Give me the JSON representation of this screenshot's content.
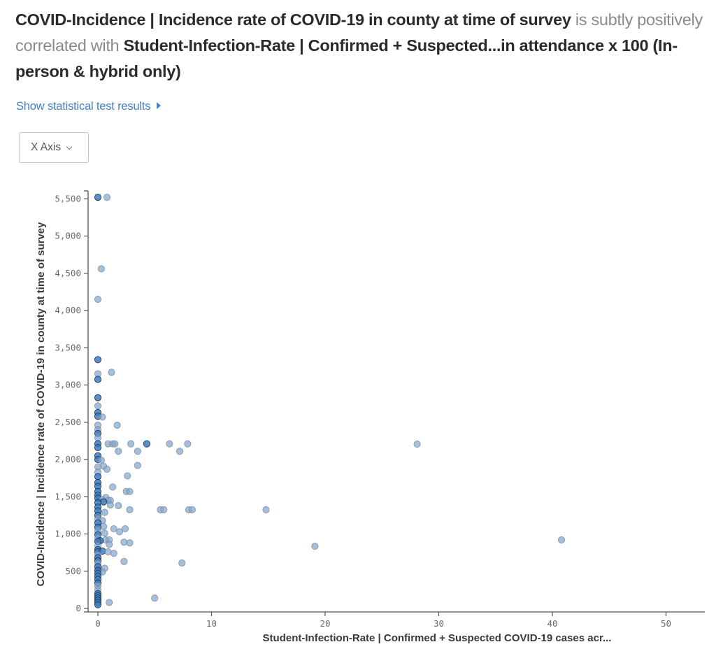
{
  "headline": {
    "var_y": "COVID-Incidence | Incidence rate of COVID-19 in county at time of survey",
    "relation": " is subtly positively correlated with ",
    "var_x": "Student-Infection-Rate | Confirmed + Suspected...in attendance x 100 (In-person & hybrid only)"
  },
  "stat_link": {
    "label": "Show statistical test results",
    "icon": "caret-right-icon"
  },
  "axis_dropdown": {
    "label": "X Axis",
    "icon": "chevron-down-icon"
  },
  "colors": {
    "accent": "#3f82c8",
    "point": "#7aa6d6",
    "point_dark": "#3d7cc2"
  },
  "chart_data": {
    "type": "scatter",
    "title": "",
    "xlabel": "Student-Infection-Rate | Confirmed + Suspected COVID-19 cases acr...",
    "ylabel": "COVID-Incidence | Incidence rate of COVID-19 in county at time of survey",
    "xlim": [
      -0.8,
      53.8
    ],
    "ylim": [
      0,
      5600
    ],
    "x_ticks": [
      0,
      10,
      20,
      30,
      40,
      50
    ],
    "x_tick_labels": [
      "0",
      "10",
      "20",
      "30",
      "40",
      "50"
    ],
    "y_ticks": [
      0,
      500,
      1000,
      1500,
      2000,
      2500,
      3000,
      3500,
      4000,
      4500,
      5000,
      5500
    ],
    "y_tick_labels": [
      "0",
      "500",
      "1,000",
      "1,500",
      "2,000",
      "2,500",
      "3,000",
      "3,500",
      "4,000",
      "4,500",
      "5,000",
      "5,500"
    ],
    "grid": false,
    "points": [
      {
        "x": 0,
        "y": 5520,
        "dense": true
      },
      {
        "x": 0.8,
        "y": 5520
      },
      {
        "x": 0.3,
        "y": 4560
      },
      {
        "x": 0,
        "y": 4150
      },
      {
        "x": 0,
        "y": 3340,
        "dense": true
      },
      {
        "x": 0,
        "y": 3150
      },
      {
        "x": 0,
        "y": 3075,
        "dense": true
      },
      {
        "x": 1.2,
        "y": 3170
      },
      {
        "x": 0,
        "y": 2830,
        "dense": true
      },
      {
        "x": 0,
        "y": 2720
      },
      {
        "x": 0,
        "y": 2630,
        "dense": true
      },
      {
        "x": 0,
        "y": 2580,
        "dense": true
      },
      {
        "x": 0.4,
        "y": 2570
      },
      {
        "x": 1.7,
        "y": 2460
      },
      {
        "x": 0,
        "y": 2460
      },
      {
        "x": 0,
        "y": 2400
      },
      {
        "x": 0,
        "y": 2350,
        "dense": true
      },
      {
        "x": 0,
        "y": 2290
      },
      {
        "x": 0,
        "y": 2210,
        "dense": true
      },
      {
        "x": 0,
        "y": 2160,
        "dense": true
      },
      {
        "x": 0.9,
        "y": 2210
      },
      {
        "x": 1.3,
        "y": 2210
      },
      {
        "x": 1.5,
        "y": 2210
      },
      {
        "x": 2.9,
        "y": 2210
      },
      {
        "x": 4.3,
        "y": 2210,
        "dense": true
      },
      {
        "x": 6.3,
        "y": 2210
      },
      {
        "x": 7.9,
        "y": 2210
      },
      {
        "x": 1.8,
        "y": 2110
      },
      {
        "x": 3.5,
        "y": 2110
      },
      {
        "x": 7.2,
        "y": 2110
      },
      {
        "x": 28.1,
        "y": 2206
      },
      {
        "x": 0,
        "y": 2050,
        "dense": true
      },
      {
        "x": 0,
        "y": 2000,
        "dense": true
      },
      {
        "x": 0.3,
        "y": 1990
      },
      {
        "x": 0.5,
        "y": 1910
      },
      {
        "x": 3.5,
        "y": 1920
      },
      {
        "x": 0,
        "y": 1900
      },
      {
        "x": 0.8,
        "y": 1870
      },
      {
        "x": 0,
        "y": 1830
      },
      {
        "x": 0,
        "y": 1770,
        "dense": true
      },
      {
        "x": 2.6,
        "y": 1780
      },
      {
        "x": 0,
        "y": 1690,
        "dense": true
      },
      {
        "x": 0,
        "y": 1640,
        "dense": true
      },
      {
        "x": 1.3,
        "y": 1630
      },
      {
        "x": 0,
        "y": 1570,
        "dense": true
      },
      {
        "x": 2.5,
        "y": 1570
      },
      {
        "x": 2.8,
        "y": 1570
      },
      {
        "x": 0,
        "y": 1520,
        "dense": true
      },
      {
        "x": 0,
        "y": 1480,
        "dense": true
      },
      {
        "x": 0.7,
        "y": 1490
      },
      {
        "x": 0.4,
        "y": 1460
      },
      {
        "x": 0.9,
        "y": 1450
      },
      {
        "x": 1.1,
        "y": 1450
      },
      {
        "x": 0.5,
        "y": 1430,
        "dense": true
      },
      {
        "x": 0,
        "y": 1420,
        "dense": true
      },
      {
        "x": 1.1,
        "y": 1390
      },
      {
        "x": 1.8,
        "y": 1380
      },
      {
        "x": 0,
        "y": 1360,
        "dense": true
      },
      {
        "x": 0,
        "y": 1310,
        "dense": true
      },
      {
        "x": 0.6,
        "y": 1290
      },
      {
        "x": 2.8,
        "y": 1325
      },
      {
        "x": 5.5,
        "y": 1325
      },
      {
        "x": 5.8,
        "y": 1325
      },
      {
        "x": 8.0,
        "y": 1325
      },
      {
        "x": 8.3,
        "y": 1325
      },
      {
        "x": 14.8,
        "y": 1325
      },
      {
        "x": 0,
        "y": 1250,
        "dense": true
      },
      {
        "x": 0,
        "y": 1200
      },
      {
        "x": 0.4,
        "y": 1180
      },
      {
        "x": 0,
        "y": 1150,
        "dense": true
      },
      {
        "x": 0.5,
        "y": 1100
      },
      {
        "x": 1.4,
        "y": 1070
      },
      {
        "x": 2.4,
        "y": 1070
      },
      {
        "x": 0,
        "y": 1090,
        "dense": true
      },
      {
        "x": 0,
        "y": 1040
      },
      {
        "x": 0.6,
        "y": 1010
      },
      {
        "x": 1.9,
        "y": 1030
      },
      {
        "x": 0,
        "y": 990,
        "dense": true
      },
      {
        "x": 0,
        "y": 940
      },
      {
        "x": 0.7,
        "y": 920
      },
      {
        "x": 1.0,
        "y": 920
      },
      {
        "x": 2.3,
        "y": 890
      },
      {
        "x": 2.8,
        "y": 880
      },
      {
        "x": 0.2,
        "y": 910,
        "dense": true
      },
      {
        "x": 0,
        "y": 900,
        "dense": true
      },
      {
        "x": 1.0,
        "y": 860
      },
      {
        "x": 0,
        "y": 840
      },
      {
        "x": 19.1,
        "y": 835
      },
      {
        "x": 40.8,
        "y": 920
      },
      {
        "x": 0,
        "y": 790,
        "dense": true
      },
      {
        "x": 0,
        "y": 760,
        "dense": true
      },
      {
        "x": 0.4,
        "y": 770,
        "dense": true
      },
      {
        "x": 0.9,
        "y": 760
      },
      {
        "x": 1.4,
        "y": 740
      },
      {
        "x": 0,
        "y": 720
      },
      {
        "x": 0,
        "y": 680,
        "dense": true
      },
      {
        "x": 0,
        "y": 640,
        "dense": true
      },
      {
        "x": 2.3,
        "y": 630
      },
      {
        "x": 7.4,
        "y": 610
      },
      {
        "x": 0,
        "y": 600
      },
      {
        "x": 0,
        "y": 560,
        "dense": true
      },
      {
        "x": 0.6,
        "y": 540
      },
      {
        "x": 0.4,
        "y": 490
      },
      {
        "x": 0,
        "y": 510,
        "dense": true
      },
      {
        "x": 0,
        "y": 470,
        "dense": true
      },
      {
        "x": 0,
        "y": 430,
        "dense": true
      },
      {
        "x": 0,
        "y": 390,
        "dense": true
      },
      {
        "x": 0,
        "y": 340,
        "dense": true
      },
      {
        "x": 0,
        "y": 300
      },
      {
        "x": 0,
        "y": 250
      },
      {
        "x": 0,
        "y": 200,
        "dense": true
      },
      {
        "x": 0,
        "y": 170,
        "dense": true
      },
      {
        "x": 0,
        "y": 140,
        "dense": true
      },
      {
        "x": 5.0,
        "y": 140
      },
      {
        "x": 0,
        "y": 110,
        "dense": true
      },
      {
        "x": 0,
        "y": 80,
        "dense": true
      },
      {
        "x": 1.0,
        "y": 80
      },
      {
        "x": 0,
        "y": 50,
        "dense": true
      }
    ]
  }
}
